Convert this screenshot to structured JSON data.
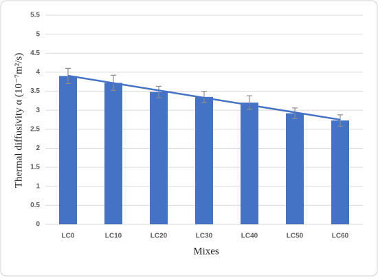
{
  "chart_data": {
    "type": "bar",
    "x_label": "Mixes",
    "y_label": "Thermal diffusivity α (10⁻⁷m²/s)",
    "categories": [
      "LC0",
      "LC10",
      "LC20",
      "LC30",
      "LC40",
      "LC50",
      "LC60"
    ],
    "values": [
      3.9,
      3.72,
      3.48,
      3.35,
      3.2,
      2.92,
      2.73
    ],
    "errors": [
      0.2,
      0.2,
      0.15,
      0.15,
      0.18,
      0.14,
      0.15
    ],
    "color": "#4472c4",
    "trendline": "linear",
    "ylim": [
      0,
      5.5
    ],
    "yticks": [
      0,
      0.5,
      1,
      1.5,
      2,
      2.5,
      3,
      3.5,
      4,
      4.5,
      5,
      5.5
    ],
    "grid": true
  }
}
